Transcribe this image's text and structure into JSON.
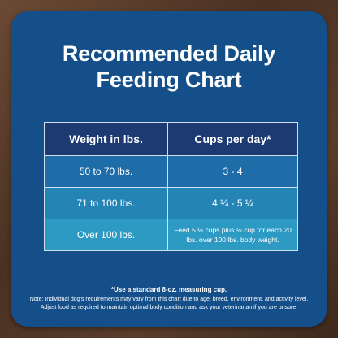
{
  "title_line1": "Recommended Daily",
  "title_line2": "Feeding Chart",
  "table": {
    "headers": [
      "Weight in lbs.",
      "Cups per day*"
    ],
    "rows": [
      [
        "50 to 70 lbs.",
        "3 - 4"
      ],
      [
        "71 to 100 lbs.",
        "4 ¼ - 5 ¼"
      ],
      [
        "Over 100 lbs.",
        "Feed 5 ½ cups plus ½ cup for each 20 lbs. over 100 lbs. body weight."
      ]
    ]
  },
  "footnote_title": "*Use a standard 8-oz. measuring cup.",
  "footnote_body": "Note: Individual dog's requirements may vary from this chart due to age, breed, environment, and activity level. Adjust food as required to maintain optimal body condition and ask your veterinarian if you are unsure.",
  "colors": {
    "card": "#154f8a",
    "header_row": "#1d3a73",
    "row1": "#1e6da8",
    "row2": "#2484b6",
    "row3": "#2d9ac4",
    "background_wood": "#4a3122"
  }
}
